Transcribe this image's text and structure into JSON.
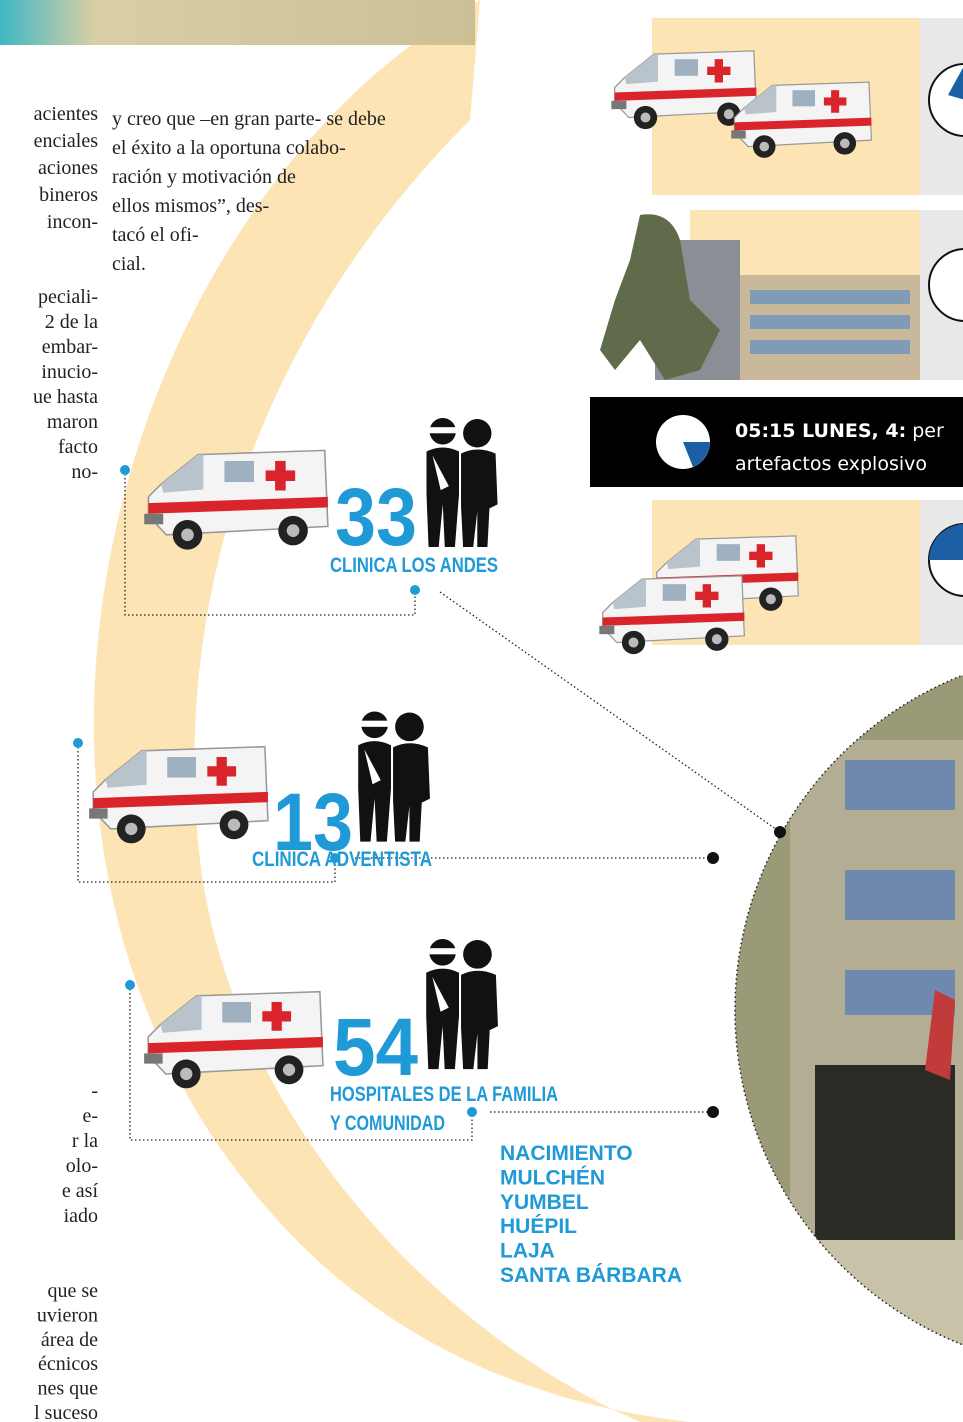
{
  "article": {
    "column_1_top": [
      "acientes",
      "enciales",
      "aciones",
      "bineros",
      "incon-"
    ],
    "column_1_middle": [
      "peciali-",
      "2 de la",
      "embar-",
      "inucio-",
      "ue hasta",
      "maron",
      "facto",
      "no-"
    ],
    "column_1_bottom_a": [
      "-",
      "e-",
      "r la",
      "olo-",
      "e así",
      "iado"
    ],
    "column_1_bottom_b": [
      "que se",
      "uvieron",
      "área de",
      "écnicos",
      "nes que",
      "l suceso"
    ],
    "column_2": [
      "y creo que –en gran parte- se debe",
      "el éxito a la oportuna colabo-",
      "ración y motivación de",
      "ellos mismos”, des-",
      "tacó el ofi-",
      "cial."
    ]
  },
  "timeline": {
    "banner": {
      "time": "05:15 LUNES, 4:",
      "text_1": "per",
      "text_2": "artefactos explosivo"
    }
  },
  "hospitals": [
    {
      "count": 33,
      "name": "CLINICA LOS ANDES"
    },
    {
      "count": 13,
      "name": "CLINICA ADVENTISTA"
    },
    {
      "count": 54,
      "name_lines": [
        "HOSPITALES DE LA FAMILIA",
        "Y COMUNIDAD"
      ],
      "locations": [
        "NACIMIENTO",
        "MULCHÉN",
        "YUMBEL",
        "HUÉPIL",
        "LAJA",
        "SANTA BÁRBARA"
      ]
    }
  ]
}
